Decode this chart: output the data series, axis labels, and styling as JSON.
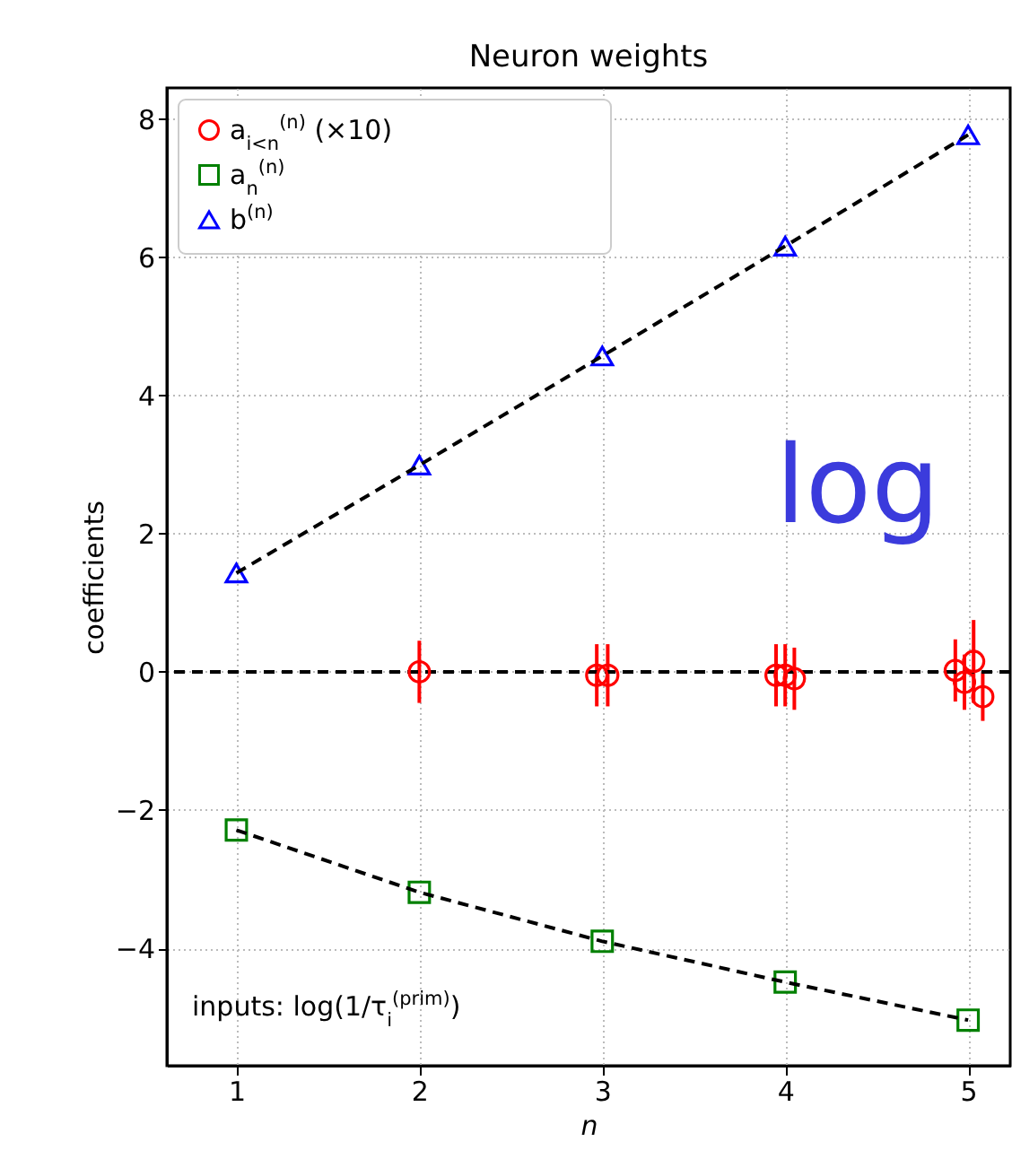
{
  "chart_data": {
    "type": "scatter",
    "title": "Neuron weights",
    "xlabel": "n",
    "ylabel": "coefficients",
    "xlim": [
      0.62,
      5.23
    ],
    "xticks": [
      1,
      2,
      3,
      4,
      5
    ],
    "ylim": [
      -5.7,
      8.45
    ],
    "yticks": [
      -4,
      -2,
      0,
      2,
      4,
      6,
      8
    ],
    "grid": true,
    "legend": "top left",
    "annotations": [
      "inputs: log(1/τ$_{i}$$^{(prim)}$)",
      "log"
    ],
    "ref_lines": [
      {
        "axis": "y",
        "value": 0,
        "color": "#000000",
        "line_style": "dashed"
      }
    ],
    "series": [
      {
        "name": "a$_{i<n}$$^{(n)}$ (×10)",
        "type": "scatter",
        "color": "#ff0000",
        "marker": "circle",
        "x": [
          2,
          2.97,
          3.03,
          3.95,
          4.0,
          4.05,
          4.93,
          4.98,
          5.03,
          5.08
        ],
        "values": [
          0,
          -0.05,
          -0.05,
          -0.05,
          -0.05,
          -0.1,
          0.02,
          -0.15,
          0.15,
          -0.36
        ],
        "errors": [
          0.45,
          0.45,
          0.45,
          0.45,
          0.45,
          0.45,
          0.45,
          0.4,
          0.6,
          0.35
        ]
      },
      {
        "name": "a$_{n}$$^{(n)}$",
        "type": "scatter",
        "color": "#008000",
        "marker": "square",
        "x": [
          1,
          2,
          3,
          4,
          5
        ],
        "values": [
          -2.29,
          -3.19,
          -3.9,
          -4.49,
          -5.04
        ]
      },
      {
        "name": "b$^{(n)}$",
        "type": "scatter",
        "color": "#0000ff",
        "marker": "triangle",
        "x": [
          1,
          2,
          3,
          4,
          5
        ],
        "values": [
          1.43,
          2.99,
          4.57,
          6.16,
          7.77
        ]
      },
      {
        "type": "line",
        "color": "#000000",
        "line_style": "dashed",
        "x": [
          1,
          2,
          3,
          4,
          5
        ],
        "values": [
          1.43,
          2.99,
          4.57,
          6.16,
          7.77
        ]
      },
      {
        "type": "line",
        "color": "#000000",
        "line_style": "dashed",
        "x": [
          1,
          2,
          3,
          4,
          5
        ],
        "values": [
          -2.29,
          -3.19,
          -3.9,
          -4.49,
          -5.04
        ]
      }
    ]
  }
}
